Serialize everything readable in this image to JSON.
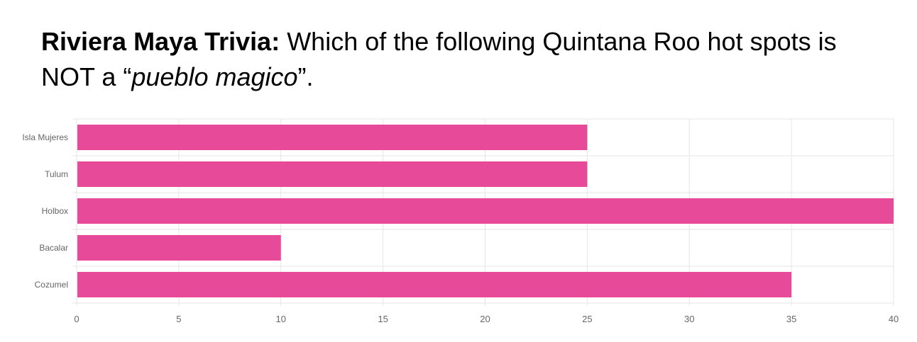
{
  "title": {
    "bold": "Riviera Maya Trivia:",
    "rest": " Which of the following Quintana Roo hot spots is NOT a “",
    "italic": "pueblo magico",
    "end": "”."
  },
  "colors": {
    "bar": "#e84a9a",
    "grid": "#e6e6e6",
    "text": "#666666"
  },
  "chart_data": {
    "type": "bar",
    "orientation": "horizontal",
    "categories": [
      "Isla Mujeres",
      "Tulum",
      "Holbox",
      "Bacalar",
      "Cozumel"
    ],
    "values": [
      25,
      25,
      40,
      10,
      35
    ],
    "xlim": [
      0,
      40
    ],
    "xticks": [
      0,
      5,
      10,
      15,
      20,
      25,
      30,
      35,
      40
    ],
    "grid": true,
    "legend": "none"
  }
}
